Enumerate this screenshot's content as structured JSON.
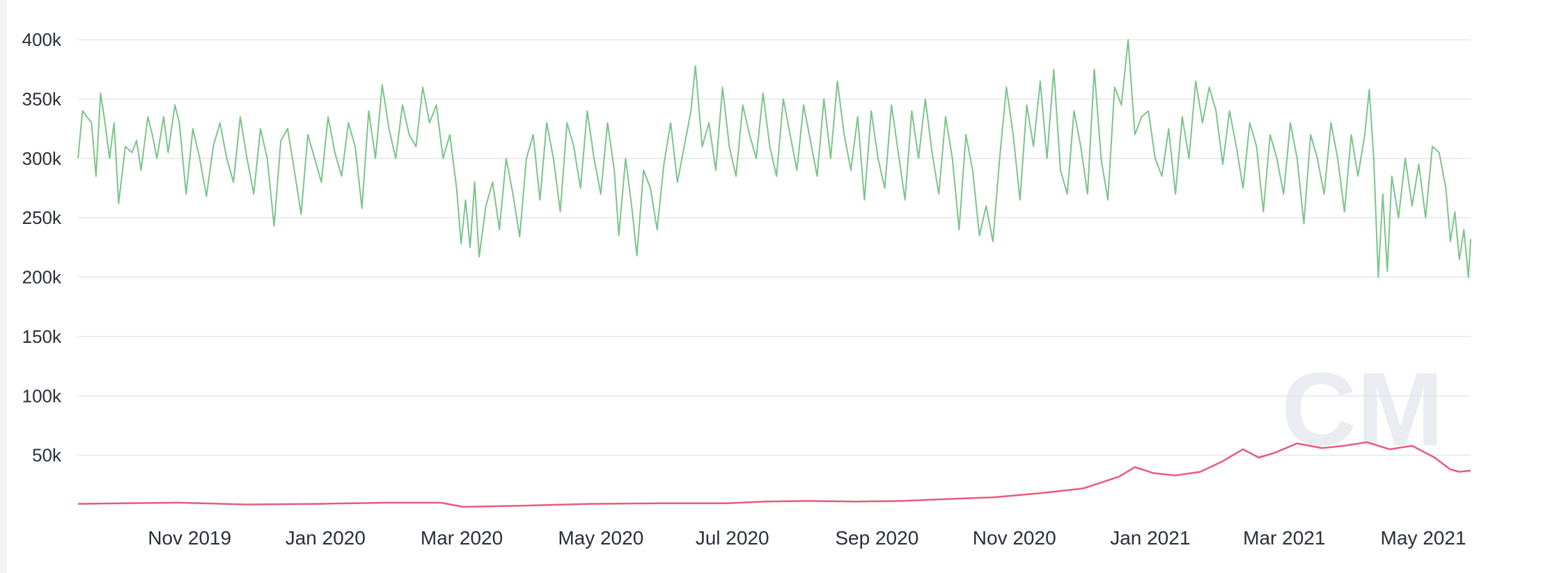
{
  "chart_data": {
    "type": "line",
    "title": "",
    "xlabel": "",
    "ylabel": "",
    "xlim": [
      "2019-10-01",
      "2021-06-10"
    ],
    "ylim": [
      0,
      410000
    ],
    "grid": true,
    "legend": "none",
    "y_ticks": [
      {
        "value": 50000,
        "label": "50k"
      },
      {
        "value": 100000,
        "label": "100k"
      },
      {
        "value": 150000,
        "label": "150k"
      },
      {
        "value": 200000,
        "label": "200k"
      },
      {
        "value": 250000,
        "label": "250k"
      },
      {
        "value": 300000,
        "label": "300k"
      },
      {
        "value": 350000,
        "label": "350k"
      },
      {
        "value": 400000,
        "label": "400k"
      }
    ],
    "x_ticks": [
      {
        "value": "2019-11-01",
        "label": "Nov 2019"
      },
      {
        "value": "2020-01-01",
        "label": "Jan 2020"
      },
      {
        "value": "2020-03-01",
        "label": "Mar 2020"
      },
      {
        "value": "2020-05-01",
        "label": "May 2020"
      },
      {
        "value": "2020-07-01",
        "label": "Jul 2020"
      },
      {
        "value": "2020-09-01",
        "label": "Sep 2020"
      },
      {
        "value": "2020-11-01",
        "label": "Nov 2020"
      },
      {
        "value": "2021-01-01",
        "label": "Jan 2021"
      },
      {
        "value": "2021-03-01",
        "label": "Mar 2021"
      },
      {
        "value": "2021-05-01",
        "label": "May 2021"
      }
    ],
    "series": [
      {
        "color": "#7cc48a",
        "points": [
          [
            "2019-10-01",
            300000
          ],
          [
            "2019-10-03",
            340000
          ],
          [
            "2019-10-05",
            335000
          ],
          [
            "2019-10-07",
            330000
          ],
          [
            "2019-10-09",
            285000
          ],
          [
            "2019-10-11",
            355000
          ],
          [
            "2019-10-13",
            330000
          ],
          [
            "2019-10-15",
            300000
          ],
          [
            "2019-10-17",
            330000
          ],
          [
            "2019-10-19",
            262000
          ],
          [
            "2019-10-22",
            310000
          ],
          [
            "2019-10-25",
            305000
          ],
          [
            "2019-10-27",
            315000
          ],
          [
            "2019-10-29",
            290000
          ],
          [
            "2019-11-01",
            335000
          ],
          [
            "2019-11-03",
            320000
          ],
          [
            "2019-11-05",
            300000
          ],
          [
            "2019-11-08",
            335000
          ],
          [
            "2019-11-10",
            305000
          ],
          [
            "2019-11-13",
            345000
          ],
          [
            "2019-11-15",
            330000
          ],
          [
            "2019-11-18",
            270000
          ],
          [
            "2019-11-21",
            325000
          ],
          [
            "2019-11-24",
            300000
          ],
          [
            "2019-11-27",
            268000
          ],
          [
            "2019-11-30",
            310000
          ],
          [
            "2019-12-03",
            330000
          ],
          [
            "2019-12-06",
            300000
          ],
          [
            "2019-12-09",
            280000
          ],
          [
            "2019-12-12",
            335000
          ],
          [
            "2019-12-15",
            300000
          ],
          [
            "2019-12-18",
            270000
          ],
          [
            "2019-12-21",
            325000
          ],
          [
            "2019-12-24",
            300000
          ],
          [
            "2019-12-27",
            243000
          ],
          [
            "2019-12-30",
            315000
          ],
          [
            "2020-01-02",
            325000
          ],
          [
            "2020-01-05",
            290000
          ],
          [
            "2020-01-08",
            253000
          ],
          [
            "2020-01-11",
            320000
          ],
          [
            "2020-01-14",
            300000
          ],
          [
            "2020-01-17",
            280000
          ],
          [
            "2020-01-20",
            335000
          ],
          [
            "2020-01-23",
            305000
          ],
          [
            "2020-01-26",
            285000
          ],
          [
            "2020-01-29",
            330000
          ],
          [
            "2020-02-01",
            310000
          ],
          [
            "2020-02-04",
            258000
          ],
          [
            "2020-02-07",
            340000
          ],
          [
            "2020-02-10",
            300000
          ],
          [
            "2020-02-13",
            362000
          ],
          [
            "2020-02-16",
            325000
          ],
          [
            "2020-02-19",
            300000
          ],
          [
            "2020-02-22",
            345000
          ],
          [
            "2020-02-25",
            320000
          ],
          [
            "2020-02-28",
            310000
          ],
          [
            "2020-03-02",
            360000
          ],
          [
            "2020-03-05",
            330000
          ],
          [
            "2020-03-08",
            345000
          ],
          [
            "2020-03-11",
            300000
          ],
          [
            "2020-03-14",
            320000
          ],
          [
            "2020-03-17",
            275000
          ],
          [
            "2020-03-19",
            228000
          ],
          [
            "2020-03-21",
            265000
          ],
          [
            "2020-03-23",
            225000
          ],
          [
            "2020-03-25",
            280000
          ],
          [
            "2020-03-27",
            217000
          ],
          [
            "2020-03-30",
            260000
          ],
          [
            "2020-04-02",
            280000
          ],
          [
            "2020-04-05",
            240000
          ],
          [
            "2020-04-08",
            300000
          ],
          [
            "2020-04-11",
            270000
          ],
          [
            "2020-04-14",
            234000
          ],
          [
            "2020-04-17",
            300000
          ],
          [
            "2020-04-20",
            320000
          ],
          [
            "2020-04-23",
            265000
          ],
          [
            "2020-04-26",
            330000
          ],
          [
            "2020-04-29",
            300000
          ],
          [
            "2020-05-02",
            255000
          ],
          [
            "2020-05-05",
            330000
          ],
          [
            "2020-05-08",
            310000
          ],
          [
            "2020-05-11",
            275000
          ],
          [
            "2020-05-14",
            340000
          ],
          [
            "2020-05-17",
            300000
          ],
          [
            "2020-05-20",
            270000
          ],
          [
            "2020-05-23",
            330000
          ],
          [
            "2020-05-26",
            290000
          ],
          [
            "2020-05-28",
            235000
          ],
          [
            "2020-05-31",
            300000
          ],
          [
            "2020-06-03",
            255000
          ],
          [
            "2020-06-05",
            218000
          ],
          [
            "2020-06-08",
            290000
          ],
          [
            "2020-06-11",
            275000
          ],
          [
            "2020-06-14",
            240000
          ],
          [
            "2020-06-17",
            295000
          ],
          [
            "2020-06-20",
            330000
          ],
          [
            "2020-06-23",
            280000
          ],
          [
            "2020-06-26",
            310000
          ],
          [
            "2020-06-29",
            340000
          ],
          [
            "2020-07-01",
            378000
          ],
          [
            "2020-07-04",
            310000
          ],
          [
            "2020-07-07",
            330000
          ],
          [
            "2020-07-10",
            290000
          ],
          [
            "2020-07-13",
            360000
          ],
          [
            "2020-07-16",
            310000
          ],
          [
            "2020-07-19",
            285000
          ],
          [
            "2020-07-22",
            345000
          ],
          [
            "2020-07-25",
            320000
          ],
          [
            "2020-07-28",
            300000
          ],
          [
            "2020-07-31",
            355000
          ],
          [
            "2020-08-03",
            310000
          ],
          [
            "2020-08-06",
            285000
          ],
          [
            "2020-08-09",
            350000
          ],
          [
            "2020-08-12",
            320000
          ],
          [
            "2020-08-15",
            290000
          ],
          [
            "2020-08-18",
            345000
          ],
          [
            "2020-08-21",
            315000
          ],
          [
            "2020-08-24",
            285000
          ],
          [
            "2020-08-27",
            350000
          ],
          [
            "2020-08-30",
            300000
          ],
          [
            "2020-09-02",
            365000
          ],
          [
            "2020-09-05",
            320000
          ],
          [
            "2020-09-08",
            290000
          ],
          [
            "2020-09-11",
            335000
          ],
          [
            "2020-09-14",
            265000
          ],
          [
            "2020-09-17",
            340000
          ],
          [
            "2020-09-20",
            300000
          ],
          [
            "2020-09-23",
            275000
          ],
          [
            "2020-09-26",
            345000
          ],
          [
            "2020-09-29",
            305000
          ],
          [
            "2020-10-02",
            265000
          ],
          [
            "2020-10-05",
            340000
          ],
          [
            "2020-10-08",
            300000
          ],
          [
            "2020-10-11",
            350000
          ],
          [
            "2020-10-14",
            305000
          ],
          [
            "2020-10-17",
            270000
          ],
          [
            "2020-10-20",
            335000
          ],
          [
            "2020-10-23",
            300000
          ],
          [
            "2020-10-26",
            240000
          ],
          [
            "2020-10-29",
            320000
          ],
          [
            "2020-11-01",
            290000
          ],
          [
            "2020-11-04",
            235000
          ],
          [
            "2020-11-07",
            260000
          ],
          [
            "2020-11-10",
            230000
          ],
          [
            "2020-11-13",
            300000
          ],
          [
            "2020-11-16",
            360000
          ],
          [
            "2020-11-19",
            320000
          ],
          [
            "2020-11-22",
            265000
          ],
          [
            "2020-11-25",
            345000
          ],
          [
            "2020-11-28",
            310000
          ],
          [
            "2020-12-01",
            365000
          ],
          [
            "2020-12-04",
            300000
          ],
          [
            "2020-12-07",
            375000
          ],
          [
            "2020-12-10",
            290000
          ],
          [
            "2020-12-13",
            270000
          ],
          [
            "2020-12-16",
            340000
          ],
          [
            "2020-12-19",
            310000
          ],
          [
            "2020-12-22",
            270000
          ],
          [
            "2020-12-25",
            375000
          ],
          [
            "2020-12-28",
            300000
          ],
          [
            "2020-12-31",
            265000
          ],
          [
            "2021-01-03",
            360000
          ],
          [
            "2021-01-06",
            345000
          ],
          [
            "2021-01-09",
            400000
          ],
          [
            "2021-01-12",
            320000
          ],
          [
            "2021-01-15",
            335000
          ],
          [
            "2021-01-18",
            340000
          ],
          [
            "2021-01-21",
            300000
          ],
          [
            "2021-01-24",
            285000
          ],
          [
            "2021-01-27",
            325000
          ],
          [
            "2021-01-30",
            270000
          ],
          [
            "2021-02-02",
            335000
          ],
          [
            "2021-02-05",
            300000
          ],
          [
            "2021-02-08",
            365000
          ],
          [
            "2021-02-11",
            330000
          ],
          [
            "2021-02-14",
            360000
          ],
          [
            "2021-02-17",
            340000
          ],
          [
            "2021-02-20",
            295000
          ],
          [
            "2021-02-23",
            340000
          ],
          [
            "2021-02-26",
            310000
          ],
          [
            "2021-03-01",
            275000
          ],
          [
            "2021-03-04",
            330000
          ],
          [
            "2021-03-07",
            310000
          ],
          [
            "2021-03-10",
            255000
          ],
          [
            "2021-03-13",
            320000
          ],
          [
            "2021-03-16",
            300000
          ],
          [
            "2021-03-19",
            270000
          ],
          [
            "2021-03-22",
            330000
          ],
          [
            "2021-03-25",
            300000
          ],
          [
            "2021-03-28",
            245000
          ],
          [
            "2021-03-31",
            320000
          ],
          [
            "2021-04-03",
            300000
          ],
          [
            "2021-04-06",
            270000
          ],
          [
            "2021-04-09",
            330000
          ],
          [
            "2021-04-12",
            300000
          ],
          [
            "2021-04-15",
            255000
          ],
          [
            "2021-04-18",
            320000
          ],
          [
            "2021-04-21",
            285000
          ],
          [
            "2021-04-24",
            320000
          ],
          [
            "2021-04-26",
            358000
          ],
          [
            "2021-04-28",
            300000
          ],
          [
            "2021-04-30",
            200000
          ],
          [
            "2021-05-02",
            270000
          ],
          [
            "2021-05-04",
            205000
          ],
          [
            "2021-05-06",
            285000
          ],
          [
            "2021-05-09",
            250000
          ],
          [
            "2021-05-12",
            300000
          ],
          [
            "2021-05-15",
            260000
          ],
          [
            "2021-05-18",
            295000
          ],
          [
            "2021-05-21",
            250000
          ],
          [
            "2021-05-24",
            310000
          ],
          [
            "2021-05-27",
            305000
          ],
          [
            "2021-05-30",
            275000
          ],
          [
            "2021-06-01",
            230000
          ],
          [
            "2021-06-03",
            255000
          ],
          [
            "2021-06-05",
            215000
          ],
          [
            "2021-06-07",
            240000
          ],
          [
            "2021-06-09",
            200000
          ],
          [
            "2021-06-10",
            232000
          ]
        ]
      },
      {
        "color": "#e85b7a",
        "points": [
          [
            "2019-10-01",
            9000
          ],
          [
            "2019-10-20",
            9500
          ],
          [
            "2019-11-15",
            10000
          ],
          [
            "2019-12-15",
            8500
          ],
          [
            "2020-01-15",
            9000
          ],
          [
            "2020-02-15",
            10000
          ],
          [
            "2020-03-10",
            10000
          ],
          [
            "2020-03-20",
            6500
          ],
          [
            "2020-04-15",
            7500
          ],
          [
            "2020-05-15",
            9000
          ],
          [
            "2020-06-15",
            9500
          ],
          [
            "2020-07-15",
            9500
          ],
          [
            "2020-08-01",
            11000
          ],
          [
            "2020-08-20",
            11500
          ],
          [
            "2020-09-10",
            11000
          ],
          [
            "2020-10-01",
            11500
          ],
          [
            "2020-10-20",
            13000
          ],
          [
            "2020-11-10",
            14500
          ],
          [
            "2020-12-01",
            18000
          ],
          [
            "2020-12-20",
            22000
          ],
          [
            "2021-01-05",
            32000
          ],
          [
            "2021-01-12",
            40000
          ],
          [
            "2021-01-20",
            35000
          ],
          [
            "2021-01-30",
            33000
          ],
          [
            "2021-02-10",
            36000
          ],
          [
            "2021-02-20",
            45000
          ],
          [
            "2021-03-01",
            55000
          ],
          [
            "2021-03-08",
            48000
          ],
          [
            "2021-03-15",
            52000
          ],
          [
            "2021-03-25",
            60000
          ],
          [
            "2021-04-05",
            56000
          ],
          [
            "2021-04-15",
            58000
          ],
          [
            "2021-04-25",
            61000
          ],
          [
            "2021-05-05",
            55000
          ],
          [
            "2021-05-15",
            58000
          ],
          [
            "2021-05-25",
            48000
          ],
          [
            "2021-06-01",
            38000
          ],
          [
            "2021-06-05",
            36000
          ],
          [
            "2021-06-10",
            37000
          ]
        ]
      }
    ]
  }
}
